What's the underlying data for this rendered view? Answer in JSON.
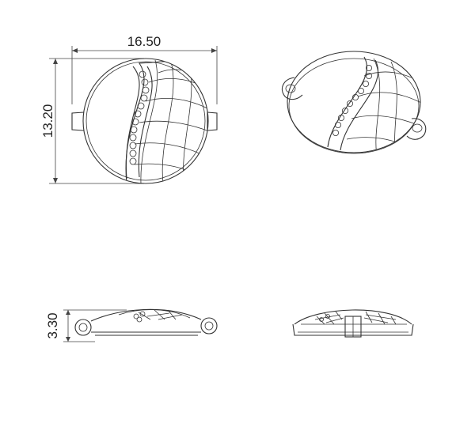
{
  "drawing": {
    "title": "",
    "dimensions": {
      "width": "16.50",
      "height": "13.20",
      "thickness": "3.30"
    }
  }
}
